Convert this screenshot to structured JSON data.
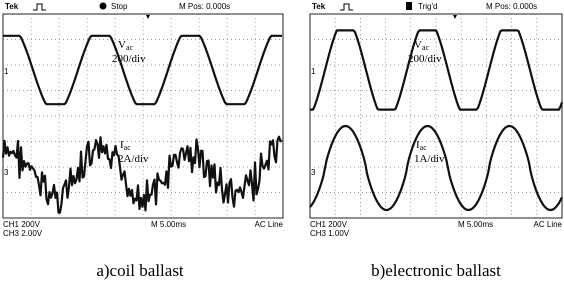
{
  "panels": [
    {
      "header": {
        "brand": "Tek",
        "state": "Stop",
        "position": "M Pos: 0.000s"
      },
      "markers": {
        "ch1": "1",
        "ch3": "3"
      },
      "voltage": {
        "label": "V",
        "sub": "ac",
        "scale": "200/div"
      },
      "current": {
        "label": "I",
        "sub": "ac",
        "scale": "2A/div"
      },
      "footer": {
        "ch1": "CH1  200V",
        "ch3": "CH3  2.00V",
        "time": "M 5.00ms",
        "trigger": "AC Line"
      },
      "caption": "a)coil ballast"
    },
    {
      "header": {
        "brand": "Tek",
        "state": "Trig'd",
        "position": "M Pos: 0.000s"
      },
      "markers": {
        "ch1": "1",
        "ch3": "3"
      },
      "voltage": {
        "label": "V",
        "sub": "ac",
        "scale": "200/div"
      },
      "current": {
        "label": "I",
        "sub": "ac",
        "scale": "1A/div"
      },
      "footer": {
        "ch1": "CH1  200V",
        "ch3": "CH3  1.00V",
        "time": "M 5.00ms",
        "trigger": "AC Line"
      },
      "caption": "b)electronic ballast"
    }
  ]
}
